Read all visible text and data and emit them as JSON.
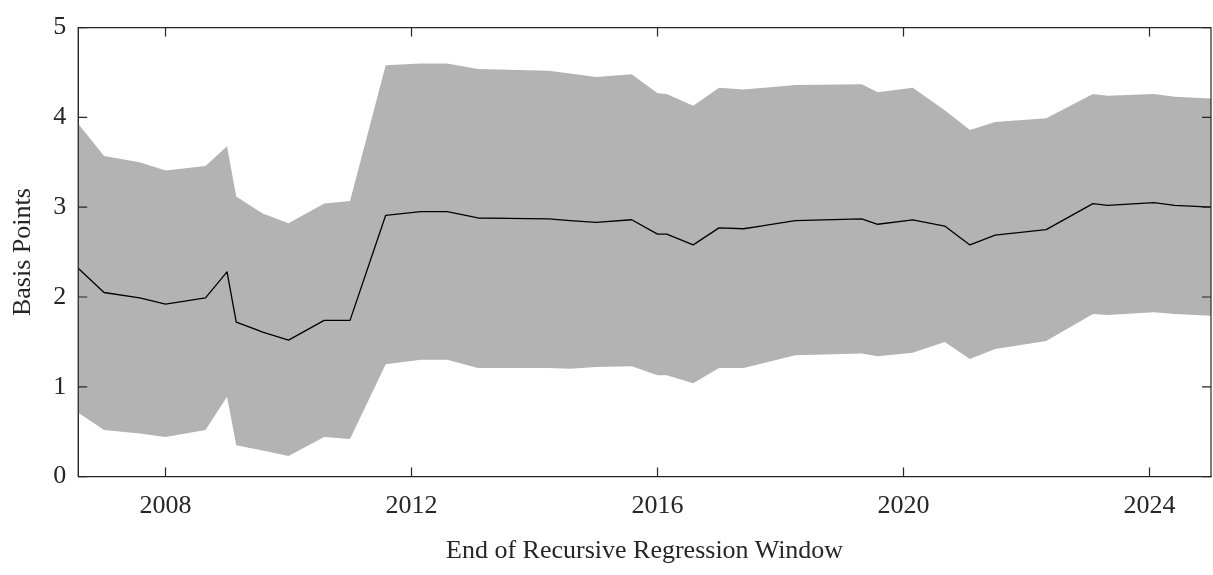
{
  "chart_data": {
    "type": "line",
    "xlabel": "End of Recursive Regression Window",
    "ylabel": "Basis Points",
    "x": [
      2006.58,
      2007.0,
      2007.58,
      2008.0,
      2008.65,
      2009.0,
      2009.15,
      2009.58,
      2010.0,
      2010.58,
      2011.0,
      2011.58,
      2012.15,
      2012.58,
      2013.08,
      2014.23,
      2014.58,
      2015.0,
      2015.58,
      2016.0,
      2016.15,
      2016.58,
      2017.0,
      2017.4,
      2018.24,
      2019.32,
      2019.58,
      2020.15,
      2020.67,
      2021.08,
      2021.49,
      2022.32,
      2023.08,
      2023.32,
      2024.07,
      2024.41,
      2025.0
    ],
    "series": [
      {
        "color": "#000000",
        "values": [
          2.32,
          2.05,
          1.99,
          1.92,
          1.99,
          2.28,
          1.72,
          1.61,
          1.52,
          1.74,
          1.74,
          2.91,
          2.95,
          2.95,
          2.88,
          2.87,
          2.85,
          2.83,
          2.86,
          2.7,
          2.7,
          2.58,
          2.77,
          2.76,
          2.85,
          2.87,
          2.81,
          2.86,
          2.79,
          2.58,
          2.69,
          2.75,
          3.04,
          3.02,
          3.05,
          3.02,
          3.0
        ],
        "lower": [
          0.71,
          0.52,
          0.48,
          0.44,
          0.52,
          0.89,
          0.35,
          0.29,
          0.23,
          0.44,
          0.42,
          1.25,
          1.3,
          1.3,
          1.21,
          1.21,
          1.2,
          1.22,
          1.23,
          1.13,
          1.13,
          1.04,
          1.21,
          1.21,
          1.35,
          1.37,
          1.34,
          1.38,
          1.5,
          1.31,
          1.42,
          1.51,
          1.81,
          1.8,
          1.83,
          1.81,
          1.79
        ],
        "upper": [
          3.93,
          3.57,
          3.5,
          3.41,
          3.46,
          3.68,
          3.12,
          2.93,
          2.82,
          3.04,
          3.07,
          4.58,
          4.6,
          4.6,
          4.54,
          4.52,
          4.49,
          4.45,
          4.48,
          4.27,
          4.26,
          4.13,
          4.33,
          4.31,
          4.36,
          4.37,
          4.28,
          4.33,
          4.08,
          3.86,
          3.95,
          3.99,
          4.26,
          4.24,
          4.26,
          4.23,
          4.21
        ]
      }
    ],
    "xlim": [
      2006.58,
      2025
    ],
    "xticks": [
      2008,
      2012,
      2016,
      2020,
      2024
    ],
    "ylim": [
      0,
      5
    ],
    "yticks": [
      0,
      1,
      2,
      3,
      4,
      5
    ]
  }
}
